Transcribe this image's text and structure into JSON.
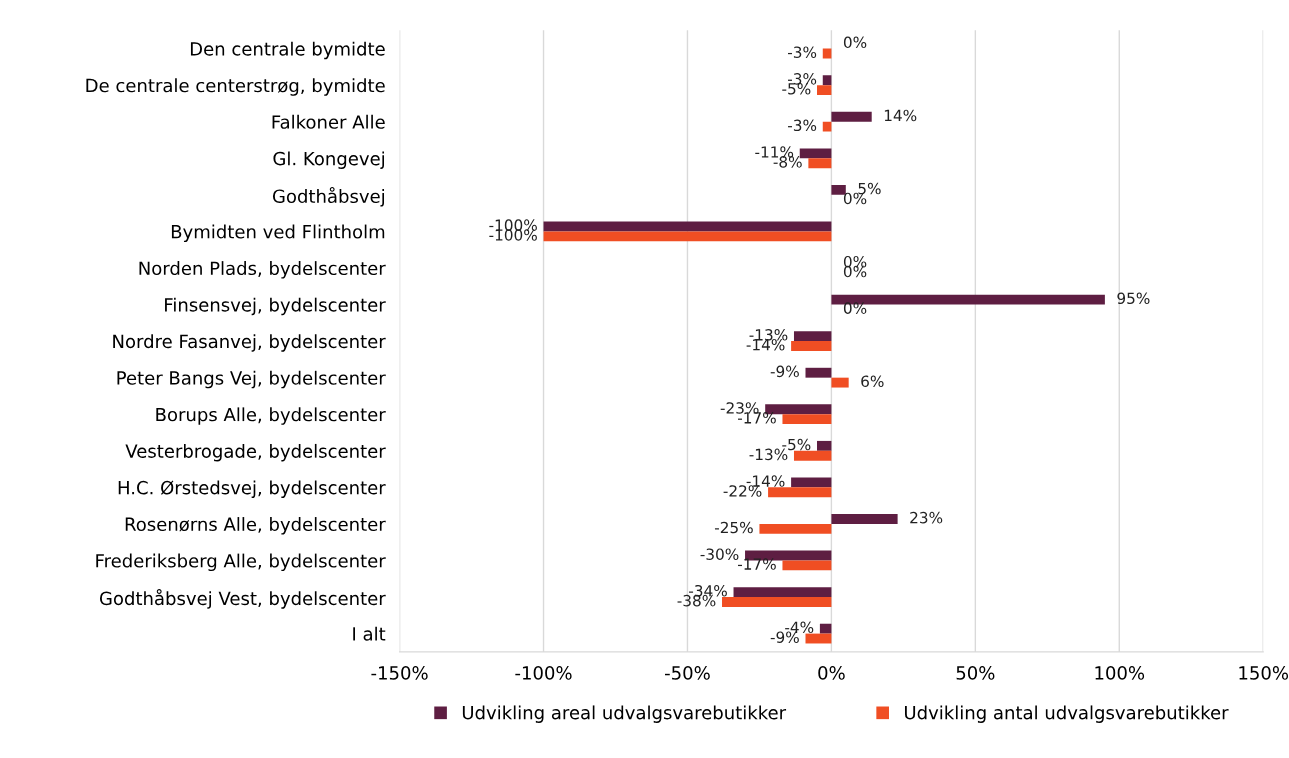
{
  "chart_data": {
    "type": "bar",
    "orientation": "horizontal",
    "categories": [
      "Den centrale bymidte",
      "De centrale centerstrøg, bymidte",
      "Falkoner Alle",
      "Gl. Kongevej",
      "Godthåbsvej",
      "Bymidten ved Flintholm",
      "Norden Plads, bydelscenter",
      "Finsensvej, bydelscenter",
      "Nordre Fasanvej, bydelscenter",
      "Peter Bangs Vej, bydelscenter",
      "Borups Alle, bydelscenter",
      "Vesterbrogade, bydelscenter",
      "H.C. Ørstedsvej, bydelscenter",
      "Rosenørns Alle, bydelscenter",
      "Frederiksberg Alle, bydelscenter",
      "Godthåbsvej Vest, bydelscenter",
      "I alt"
    ],
    "series": [
      {
        "name": "Udvikling areal udvalgsvarebutikker",
        "color": "#5e1e42",
        "values": [
          0,
          -3,
          14,
          -11,
          5,
          -100,
          0,
          95,
          -13,
          -9,
          -23,
          -5,
          -14,
          23,
          -30,
          -34,
          -4
        ],
        "value_labels": [
          "0%",
          "-3%",
          "14%",
          "-11%",
          "5%",
          "-100%",
          "0%",
          "95%",
          "-13%",
          "-9%",
          "-23%",
          "-5%",
          "-14%",
          "23%",
          "-30%",
          "-34%",
          "-4%"
        ]
      },
      {
        "name": "Udvikling antal udvalgsvarebutikker",
        "color": "#f04e23",
        "values": [
          -3,
          -5,
          -3,
          -8,
          0,
          -100,
          0,
          0,
          -14,
          6,
          -17,
          -13,
          -22,
          -25,
          -17,
          -38,
          -9
        ],
        "value_labels": [
          "-3%",
          "-5%",
          "-3%",
          "-8%",
          "0%",
          "-100%",
          "0%",
          "0%",
          "-14%",
          "6%",
          "-17%",
          "-13%",
          "-22%",
          "-25%",
          "-17%",
          "-38%",
          "-9%"
        ]
      }
    ],
    "xlim": [
      -150,
      150
    ],
    "xticks": [
      {
        "value": -150,
        "label": "-150%"
      },
      {
        "value": -100,
        "label": "-100%"
      },
      {
        "value": -50,
        "label": "-50%"
      },
      {
        "value": 0,
        "label": "0%"
      },
      {
        "value": 50,
        "label": "50%"
      },
      {
        "value": 100,
        "label": "100%"
      },
      {
        "value": 150,
        "label": "150%"
      }
    ],
    "grid": "x",
    "legend": "bottom"
  }
}
